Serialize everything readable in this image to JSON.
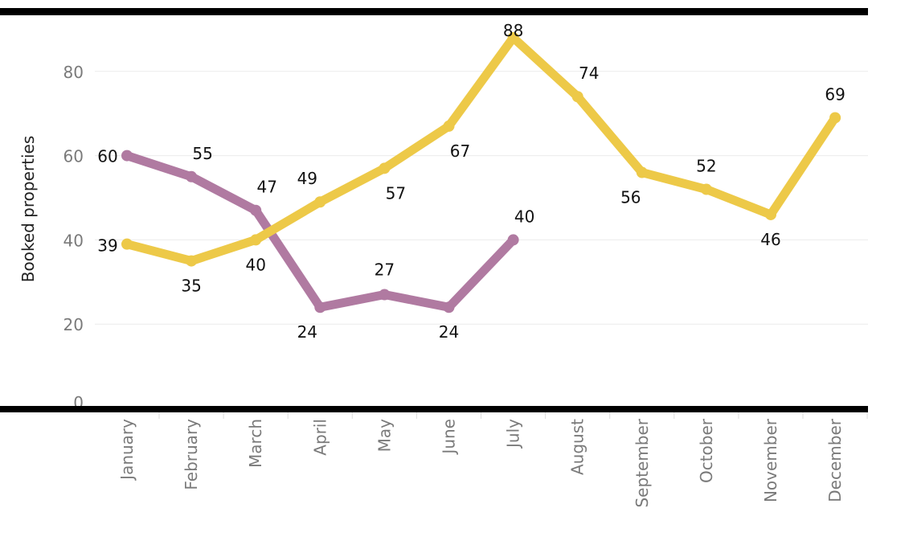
{
  "chart_data": {
    "type": "line",
    "ylabel": "Booked properties",
    "xlabel": "",
    "categories": [
      "January",
      "February",
      "March",
      "April",
      "May",
      "June",
      "July",
      "August",
      "September",
      "October",
      "November",
      "December"
    ],
    "yticks": [
      0,
      20,
      40,
      60,
      80
    ],
    "ylim": [
      0,
      90
    ],
    "grid": true,
    "series": [
      {
        "color": "#b07aa1",
        "values": [
          60,
          55,
          47,
          24,
          27,
          24,
          40,
          null,
          null,
          null,
          null,
          null
        ]
      },
      {
        "color": "#edc948",
        "values": [
          39,
          35,
          40,
          49,
          57,
          67,
          88,
          74,
          56,
          52,
          46,
          69
        ]
      }
    ]
  }
}
